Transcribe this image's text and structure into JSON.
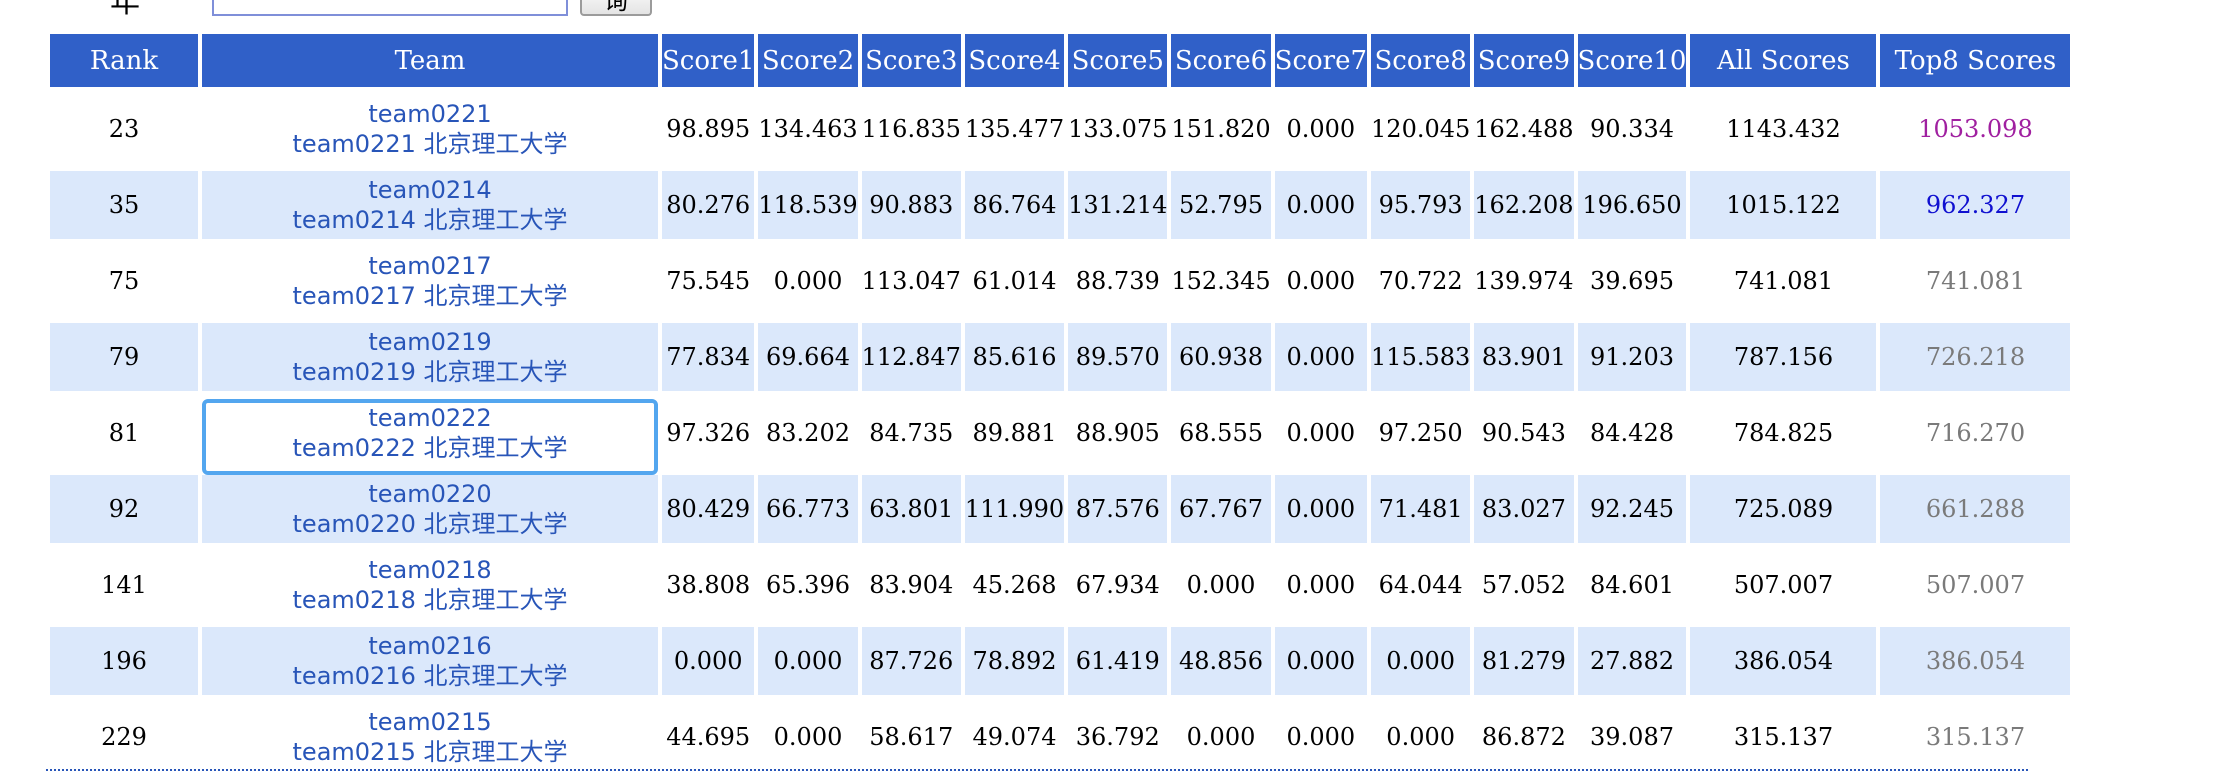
{
  "search": {
    "label": "年",
    "input_value": "",
    "input_placeholder": "",
    "button_label": "询"
  },
  "table": {
    "headers": [
      "Rank",
      "Team",
      "Score1",
      "Score2",
      "Score3",
      "Score4",
      "Score5",
      "Score6",
      "Score7",
      "Score8",
      "Score9",
      "Score10",
      "All Scores",
      "Top8 Scores"
    ],
    "rows": [
      {
        "rank": "23",
        "team_id": "team0221",
        "team_full": "team0221 北京理工大学",
        "scores": [
          "98.895",
          "134.463",
          "116.835",
          "135.477",
          "133.075",
          "151.820",
          "0.000",
          "120.045",
          "162.488",
          "90.334"
        ],
        "all": "1143.432",
        "top8": "1053.098",
        "top8_color": "#a020a0"
      },
      {
        "rank": "35",
        "team_id": "team0214",
        "team_full": "team0214 北京理工大学",
        "scores": [
          "80.276",
          "118.539",
          "90.883",
          "86.764",
          "131.214",
          "52.795",
          "0.000",
          "95.793",
          "162.208",
          "196.650"
        ],
        "all": "1015.122",
        "top8": "962.327",
        "top8_color": "#1010d0"
      },
      {
        "rank": "75",
        "team_id": "team0217",
        "team_full": "team0217 北京理工大学",
        "scores": [
          "75.545",
          "0.000",
          "113.047",
          "61.014",
          "88.739",
          "152.345",
          "0.000",
          "70.722",
          "139.974",
          "39.695"
        ],
        "all": "741.081",
        "top8": "741.081",
        "top8_color": "#7a7a7a"
      },
      {
        "rank": "79",
        "team_id": "team0219",
        "team_full": "team0219 北京理工大学",
        "scores": [
          "77.834",
          "69.664",
          "112.847",
          "85.616",
          "89.570",
          "60.938",
          "0.000",
          "115.583",
          "83.901",
          "91.203"
        ],
        "all": "787.156",
        "top8": "726.218",
        "top8_color": "#7a7a7a"
      },
      {
        "rank": "81",
        "team_id": "team0222",
        "team_full": "team0222 北京理工大学",
        "scores": [
          "97.326",
          "83.202",
          "84.735",
          "89.881",
          "88.905",
          "68.555",
          "0.000",
          "97.250",
          "90.543",
          "84.428"
        ],
        "all": "784.825",
        "top8": "716.270",
        "top8_color": "#7a7a7a",
        "focused": true
      },
      {
        "rank": "92",
        "team_id": "team0220",
        "team_full": "team0220 北京理工大学",
        "scores": [
          "80.429",
          "66.773",
          "63.801",
          "111.990",
          "87.576",
          "67.767",
          "0.000",
          "71.481",
          "83.027",
          "92.245"
        ],
        "all": "725.089",
        "top8": "661.288",
        "top8_color": "#7a7a7a"
      },
      {
        "rank": "141",
        "team_id": "team0218",
        "team_full": "team0218 北京理工大学",
        "scores": [
          "38.808",
          "65.396",
          "83.904",
          "45.268",
          "67.934",
          "0.000",
          "0.000",
          "64.044",
          "57.052",
          "84.601"
        ],
        "all": "507.007",
        "top8": "507.007",
        "top8_color": "#7a7a7a"
      },
      {
        "rank": "196",
        "team_id": "team0216",
        "team_full": "team0216 北京理工大学",
        "scores": [
          "0.000",
          "0.000",
          "87.726",
          "78.892",
          "61.419",
          "48.856",
          "0.000",
          "0.000",
          "81.279",
          "27.882"
        ],
        "all": "386.054",
        "top8": "386.054",
        "top8_color": "#7a7a7a"
      },
      {
        "rank": "229",
        "team_id": "team0215",
        "team_full": "team0215 北京理工大学",
        "scores": [
          "44.695",
          "0.000",
          "58.617",
          "49.074",
          "36.792",
          "0.000",
          "0.000",
          "0.000",
          "86.872",
          "39.087"
        ],
        "all": "315.137",
        "top8": "315.137",
        "top8_color": "#7a7a7a"
      }
    ]
  }
}
